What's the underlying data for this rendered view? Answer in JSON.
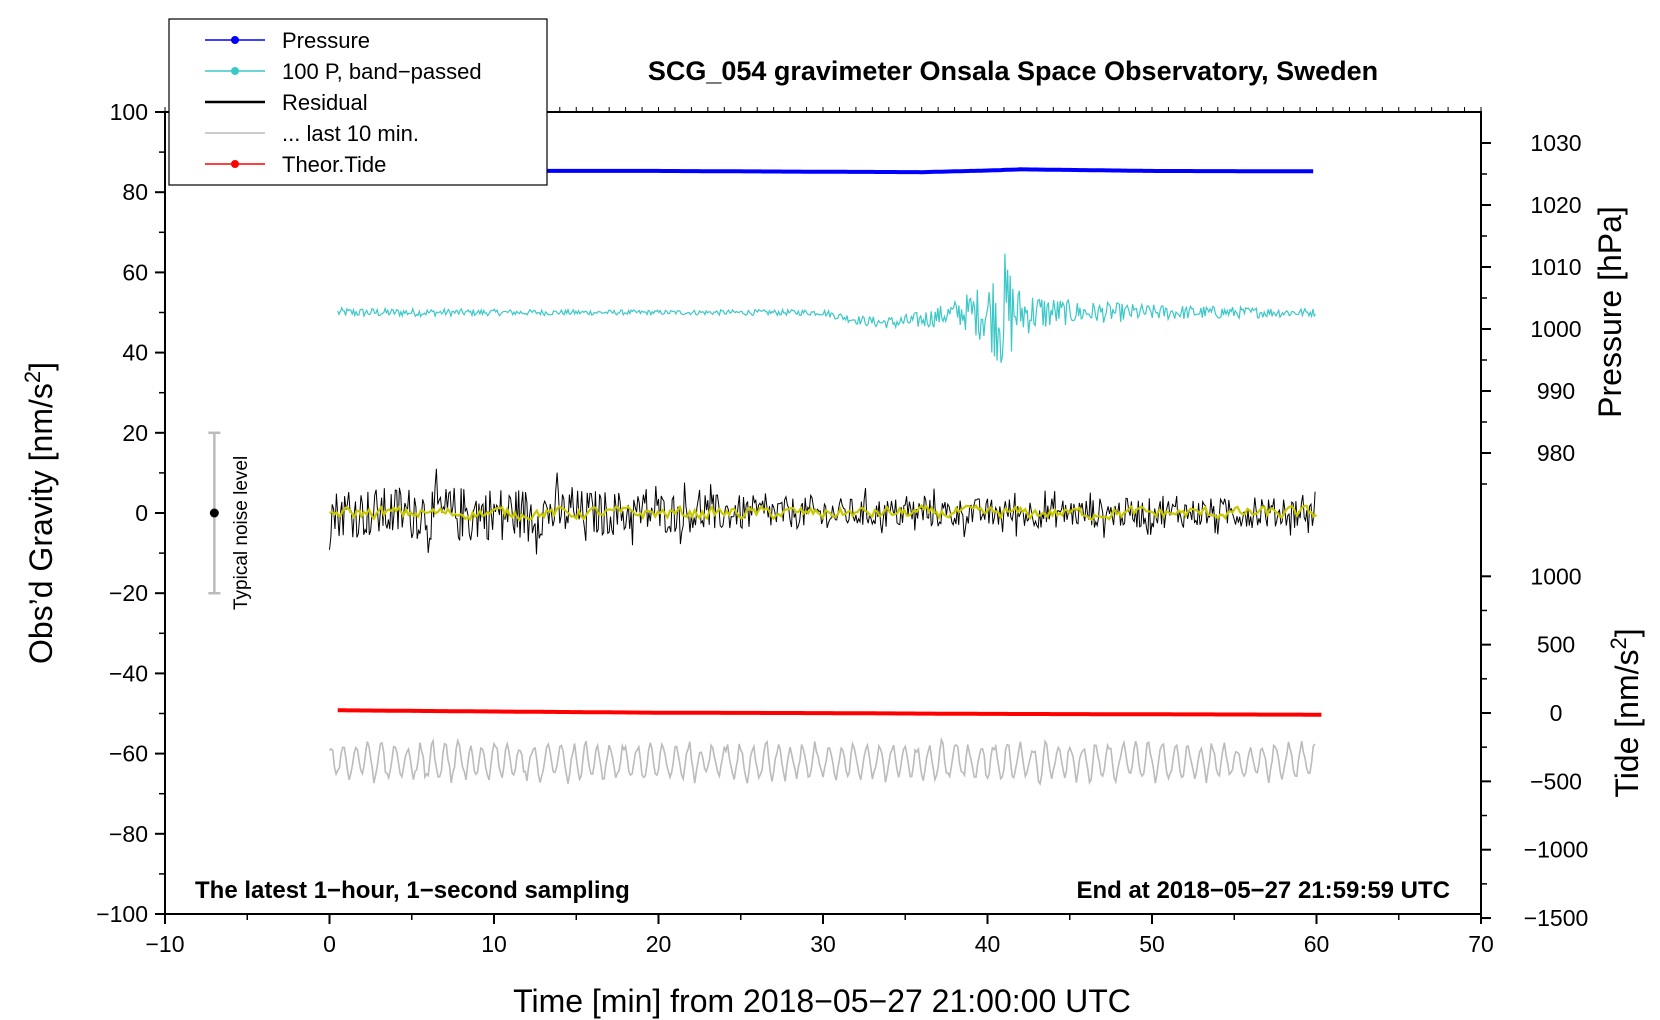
{
  "chart_data": {
    "type": "line",
    "title": "SCG_054 gravimeter Onsala Space Observatory, Sweden",
    "xlabel": "Time [min] from 2018−05−27 21:00:00 UTC",
    "ylabel_left": "Obs’d Gravity [nm/s",
    "ylabel_left_sup": "2",
    "ylabel_left_end": "]",
    "ylabel_right_pressure": "Pressure [hPa]",
    "ylabel_right_tide": "Tide [nm/s",
    "ylabel_right_tide_sup": "2",
    "ylabel_right_tide_end": "]",
    "xlim": [
      -10,
      70
    ],
    "ylim": [
      -100,
      100
    ],
    "xticks": [
      -10,
      0,
      10,
      20,
      30,
      40,
      50,
      60,
      70
    ],
    "xtick_labels": [
      "−10",
      "0",
      "10",
      "20",
      "30",
      "40",
      "50",
      "60",
      "70"
    ],
    "yticks": [
      100,
      80,
      60,
      40,
      20,
      0,
      -20,
      -40,
      -60,
      -80,
      -100
    ],
    "ytick_labels": [
      "100",
      "80",
      "60",
      "40",
      "20",
      "0",
      "−20",
      "−40",
      "−60",
      "−80",
      "−100"
    ],
    "pressure_axis": {
      "ticks": [
        1030,
        1020,
        1010,
        1000,
        990,
        980
      ],
      "tick_labels": [
        "1030",
        "1020",
        "1010",
        "1000",
        "990",
        "980"
      ]
    },
    "tide_axis": {
      "ticks": [
        1000,
        500,
        0,
        -500,
        -1000,
        -1500
      ],
      "tick_labels": [
        "1000",
        "500",
        "0",
        "−500",
        "−1000",
        "−1500"
      ]
    },
    "annotation_left": "The latest 1−hour, 1−second sampling",
    "annotation_right": "End at 2018−05−27 21:59:59 UTC",
    "noise_label": "Typical noise level",
    "noise_bar": {
      "x": -7,
      "y_low": -20,
      "y_high": 20,
      "center": 0
    },
    "legend": [
      {
        "label": "Pressure",
        "color": "#0000ff",
        "marker": true
      },
      {
        "label": "100 P, band−passed",
        "color": "#3cc8c8",
        "marker": true
      },
      {
        "label": "Residual",
        "color": "#000000",
        "marker": false
      },
      {
        "label": "... last 10 min.",
        "color": "#bbbbbb",
        "marker": false
      },
      {
        "label": "Theor.Tide",
        "color": "#ff0000",
        "marker": true
      }
    ],
    "series": [
      {
        "name": "Pressure",
        "color": "#0000ff",
        "axis": "left-equivalent",
        "approx_level": 85,
        "x": [
          0,
          10,
          20,
          30,
          36,
          40,
          42,
          50,
          60
        ],
        "y": [
          85.2,
          85.3,
          85.3,
          85.1,
          85.0,
          85.4,
          85.7,
          85.3,
          85.2
        ]
      },
      {
        "name": "100 P, band-passed",
        "color": "#3cc8c8",
        "approx_level": 50,
        "envelope_x": [
          0,
          10,
          20,
          30,
          34,
          38,
          40,
          41,
          42,
          45,
          50,
          60
        ],
        "envelope_amp": [
          1.2,
          0.8,
          0.6,
          0.8,
          1.5,
          3,
          8,
          16,
          6,
          3,
          2,
          1
        ]
      },
      {
        "name": "Residual",
        "color": "#000000",
        "approx_level": 0,
        "envelope_x": [
          0,
          5,
          10,
          15,
          20,
          25,
          30,
          40,
          50,
          60
        ],
        "envelope_amp": [
          8,
          9,
          9,
          8,
          7,
          6,
          5,
          5,
          5,
          5
        ]
      },
      {
        "name": "Residual (smoothed)",
        "color": "#c8c800",
        "approx_level": 0,
        "amp": 2.5
      },
      {
        "name": "... last 10 min.",
        "color": "#bbbbbb",
        "approx_level": -62,
        "amp": 4
      },
      {
        "name": "Theor.Tide",
        "color": "#ff0000",
        "x": [
          0.5,
          10,
          20,
          30,
          40,
          50,
          60.5
        ],
        "y": [
          -49.2,
          -49.5,
          -49.8,
          -49.9,
          -50.1,
          -50.2,
          -50.3
        ]
      }
    ]
  }
}
